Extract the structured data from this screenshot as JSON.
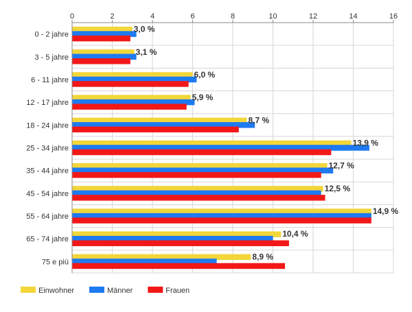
{
  "chart_data": {
    "type": "bar",
    "orientation": "horizontal",
    "categories": [
      "0 - 2 jahre",
      "3 - 5 jahre",
      "6 - 11 jahre",
      "12 - 17 jahre",
      "18 - 24 jahre",
      "25 - 34 jahre",
      "35 - 44 jahre",
      "45 - 54 jahre",
      "55 - 64 jahre",
      "65 - 74 jahre",
      "75 e più"
    ],
    "series": [
      {
        "name": "Einwohner",
        "color": "#f2d63a",
        "values": [
          3.0,
          3.1,
          6.0,
          5.9,
          8.7,
          13.9,
          12.7,
          12.5,
          14.9,
          10.4,
          8.9
        ]
      },
      {
        "name": "Männer",
        "color": "#1e7af0",
        "values": [
          3.2,
          3.2,
          6.2,
          6.1,
          9.1,
          14.8,
          13.0,
          12.4,
          14.9,
          10.0,
          7.2
        ]
      },
      {
        "name": "Frauen",
        "color": "#f21818",
        "values": [
          2.9,
          2.9,
          5.8,
          5.7,
          8.3,
          12.9,
          12.4,
          12.6,
          14.9,
          10.8,
          10.6
        ]
      }
    ],
    "data_labels": [
      "3,0 %",
      "3,1 %",
      "6,0 %",
      "5,9 %",
      "8,7 %",
      "13,9 %",
      "12,7 %",
      "12,5 %",
      "14,9 %",
      "10,4 %",
      "8,9 %"
    ],
    "xlim": [
      0,
      16
    ],
    "xticks": [
      0,
      2,
      4,
      6,
      8,
      10,
      12,
      14,
      16
    ],
    "xtick_labels": [
      "0",
      "2",
      "4",
      "6",
      "8",
      "10",
      "12",
      "14",
      "16"
    ],
    "x_axis_position": "top",
    "grid": true,
    "legend_position": "bottom-left",
    "title": "",
    "xlabel": "",
    "ylabel": ""
  }
}
